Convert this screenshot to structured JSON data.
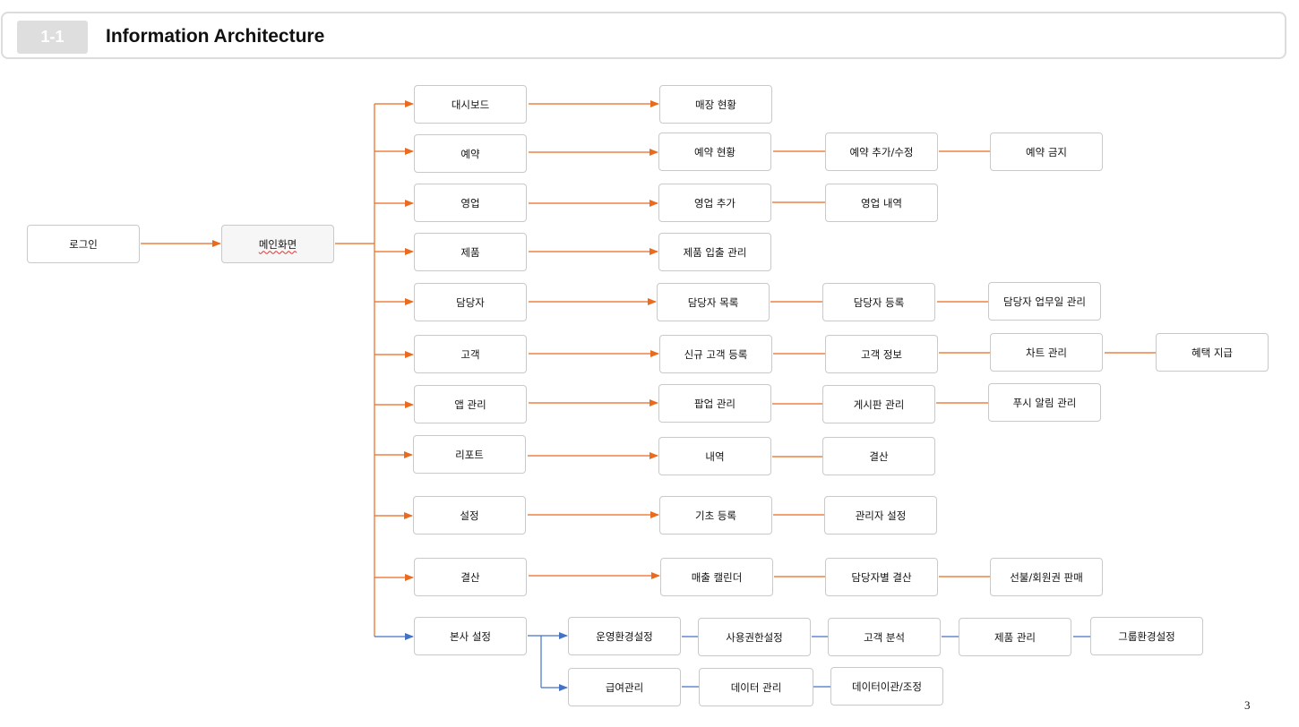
{
  "header": {
    "section_number": "1-1",
    "title": "Information Architecture"
  },
  "colors": {
    "orange_connector": "#ea6a1e",
    "blue_connector": "#4472c4",
    "node_border": "#c9c9c9"
  },
  "nodes": {
    "login": "로그인",
    "main_screen": "메인화면",
    "menus": [
      {
        "label": "대시보드",
        "children": [
          "매장 현황"
        ]
      },
      {
        "label": "예약",
        "children": [
          "예약 현황",
          "예약 추가/수정",
          "예약 금지"
        ]
      },
      {
        "label": "영업",
        "children": [
          "영업 추가",
          "영업 내역"
        ]
      },
      {
        "label": "제품",
        "children": [
          "제품 입출 관리"
        ]
      },
      {
        "label": "담당자",
        "children": [
          "담당자 목록",
          "담당자 등록",
          "담당자 업무일 관리"
        ]
      },
      {
        "label": "고객",
        "children": [
          "신규 고객 등록",
          "고객 정보",
          "차트 관리",
          "혜택 지급"
        ]
      },
      {
        "label": "앱 관리",
        "children": [
          "팝업 관리",
          "게시판 관리",
          "푸시 알림 관리"
        ]
      },
      {
        "label": "리포트",
        "children": [
          "내역",
          "결산"
        ]
      },
      {
        "label": "설정",
        "children": [
          "기초 등록",
          "관리자 설정"
        ]
      },
      {
        "label": "결산",
        "children": [
          "매출 캘린더",
          "담당자별 결산",
          "선불/회원권 판매"
        ]
      },
      {
        "label": "본사 설정",
        "row1": [
          "운영환경설정",
          "사용권한설정",
          "고객 분석",
          "제품 관리",
          "그룹환경설정"
        ],
        "row2": [
          "급여관리",
          "데이터 관리",
          "데이터이관/조정"
        ]
      }
    ]
  },
  "page_number": "3"
}
